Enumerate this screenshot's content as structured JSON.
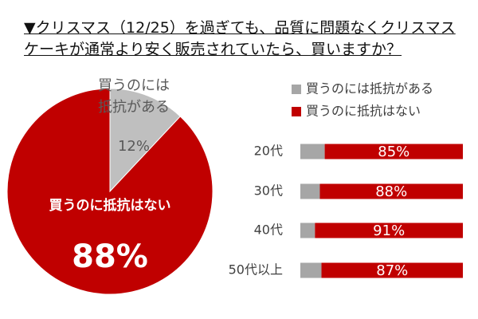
{
  "chart_data": [
    {
      "type": "pie",
      "title": "▼クリスマス（12/25）を過ぎても、品質に問題なくクリスマスケーキが通常より安く販売されていたら、買いますか？",
      "categories": [
        "買うのには抵抗がある",
        "買うのに抵抗はない"
      ],
      "values": [
        12,
        88
      ],
      "value_labels": [
        "12%",
        "88%"
      ],
      "colors": [
        "#bfbfbf",
        "#c00000"
      ]
    },
    {
      "type": "stacked-barh",
      "categories": [
        "20代",
        "30代",
        "40代",
        "50代以上"
      ],
      "series": [
        {
          "name": "買うのには抵抗がある",
          "color": "#a6a6a6",
          "values": [
            15,
            12,
            9,
            13
          ]
        },
        {
          "name": "買うのに抵抗はない",
          "color": "#c00000",
          "values": [
            85,
            88,
            91,
            87
          ],
          "value_labels": [
            "85%",
            "88%",
            "91%",
            "87%"
          ]
        }
      ],
      "xlim": [
        0,
        100
      ],
      "legend": "top"
    }
  ]
}
